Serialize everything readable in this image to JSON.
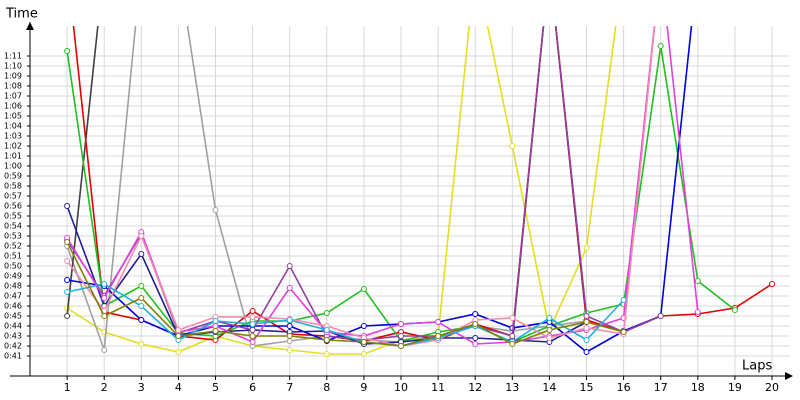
{
  "chart_data": {
    "type": "line",
    "y_title": "Time",
    "x_title": "Laps",
    "xlim": [
      0,
      20.35
    ],
    "ylim": [
      39,
      74
    ],
    "grid": true,
    "xticks": [
      1,
      2,
      3,
      4,
      5,
      6,
      7,
      8,
      9,
      10,
      11,
      12,
      13,
      14,
      15,
      16,
      17,
      18,
      19,
      20
    ],
    "yticks": [
      {
        "value": 41,
        "label": "0:41"
      },
      {
        "value": 42,
        "label": "0:42"
      },
      {
        "value": 43,
        "label": "0:43"
      },
      {
        "value": 44,
        "label": "0:44"
      },
      {
        "value": 45,
        "label": "0:45"
      },
      {
        "value": 46,
        "label": "0:46"
      },
      {
        "value": 47,
        "label": "0:47"
      },
      {
        "value": 48,
        "label": "0:48"
      },
      {
        "value": 49,
        "label": "0:49"
      },
      {
        "value": 50,
        "label": "0:50"
      },
      {
        "value": 51,
        "label": "0:51"
      },
      {
        "value": 52,
        "label": "0:52"
      },
      {
        "value": 53,
        "label": "0:53"
      },
      {
        "value": 54,
        "label": "0:54"
      },
      {
        "value": 55,
        "label": "0:55"
      },
      {
        "value": 56,
        "label": "0:56"
      },
      {
        "value": 57,
        "label": "0:57"
      },
      {
        "value": 58,
        "label": "0:58"
      },
      {
        "value": 59,
        "label": "0:59"
      },
      {
        "value": 60,
        "label": "1:00"
      },
      {
        "value": 61,
        "label": "1:01"
      },
      {
        "value": 62,
        "label": "1:02"
      },
      {
        "value": 63,
        "label": "1:03"
      },
      {
        "value": 64,
        "label": "1:04"
      },
      {
        "value": 65,
        "label": "1:05"
      },
      {
        "value": 66,
        "label": "1:06"
      },
      {
        "value": 67,
        "label": "1:07"
      },
      {
        "value": 68,
        "label": "1:08"
      },
      {
        "value": 69,
        "label": "1:09"
      },
      {
        "value": 70,
        "label": "1:10"
      },
      {
        "value": 71,
        "label": "1:11"
      }
    ],
    "x": [
      1,
      2,
      3,
      4,
      5,
      6,
      7,
      8,
      9,
      10,
      11,
      12,
      13,
      14,
      15,
      16,
      17,
      18,
      19,
      20
    ],
    "series": [
      {
        "color": "#e0e020",
        "values": [
          45.8,
          43.4,
          42.2,
          41.4,
          43,
          42,
          41.6,
          41.2,
          41.2,
          42.6,
          43,
          80,
          62,
          43.6,
          51.8,
          80,
          null,
          null,
          null,
          null
        ]
      },
      {
        "color": "#a0a0a0",
        "values": [
          52,
          41.6,
          80,
          80,
          55.6,
          42,
          42.5,
          43,
          42.6,
          42.4,
          43,
          44,
          43.5,
          44,
          44.5,
          null,
          null,
          null,
          null,
          null
        ]
      },
      {
        "color": "#404040",
        "values": [
          45,
          80,
          null,
          null,
          null,
          null,
          null,
          null,
          null,
          null,
          null,
          null,
          42.6,
          80,
          44.4,
          null,
          null,
          null,
          null,
          null
        ]
      },
      {
        "color": "#e00000",
        "values": [
          80,
          45.4,
          44.6,
          43,
          42.6,
          45.5,
          43.2,
          43,
          42.5,
          43.4,
          42.6,
          44.2,
          43,
          80,
          44.6,
          43.4,
          45,
          45.2,
          45.8,
          48.2
        ]
      },
      {
        "color": "#20c020",
        "values": [
          71.5,
          46,
          48,
          43.3,
          43,
          44.5,
          44.5,
          45.3,
          47.7,
          42.5,
          43.4,
          44,
          42.4,
          44,
          45.3,
          46.2,
          72,
          48.5,
          45.6,
          null
        ]
      },
      {
        "color": "#0000e0",
        "values": [
          48.6,
          48,
          44.6,
          43,
          44,
          44,
          44,
          42.5,
          44,
          44.2,
          44.4,
          45.2,
          43.8,
          44.4,
          41.4,
          43.5,
          45,
          80,
          null,
          null
        ]
      },
      {
        "color": "#202090",
        "values": [
          56,
          46,
          51.2,
          43,
          43.4,
          43.6,
          43.4,
          43.5,
          42.2,
          42.4,
          42.8,
          42.8,
          42.6,
          42.4,
          44.4,
          null,
          null,
          null,
          null,
          null
        ]
      },
      {
        "color": "#9040a0",
        "values": [
          52.6,
          47,
          53.2,
          43.3,
          44.5,
          43.6,
          50,
          43,
          42.6,
          43,
          43,
          44,
          43,
          80,
          45,
          43.4,
          45,
          null,
          null,
          null
        ]
      },
      {
        "color": "#e040e0",
        "values": [
          52.8,
          46.8,
          53.4,
          43.4,
          44,
          42.4,
          47.8,
          43.4,
          43,
          44.2,
          44.4,
          42.2,
          42.4,
          43,
          43.6,
          44.8,
          80,
          45.4,
          null,
          null
        ]
      },
      {
        "color": "#f08cb0",
        "values": [
          50.5,
          45.5,
          53,
          43.6,
          44.9,
          44.9,
          44.7,
          44,
          42.8,
          42,
          42.6,
          44.6,
          44.8,
          42.8,
          43.8,
          43.2,
          80,
          null,
          null,
          null
        ]
      },
      {
        "color": "#20b0e0",
        "values": [
          47.4,
          48.2,
          46,
          42.6,
          44.5,
          44.2,
          44.6,
          43.6,
          42.4,
          42,
          42.8,
          44,
          42.4,
          44.8,
          42.6,
          46.6,
          null,
          null,
          null,
          null
        ]
      },
      {
        "color": "#808000",
        "values": [
          52.4,
          45,
          46.8,
          43,
          43.5,
          43,
          43,
          42.6,
          42.4,
          42,
          43,
          44.2,
          42.2,
          43.6,
          44.4,
          43.4,
          null,
          null,
          null,
          null
        ]
      }
    ]
  }
}
